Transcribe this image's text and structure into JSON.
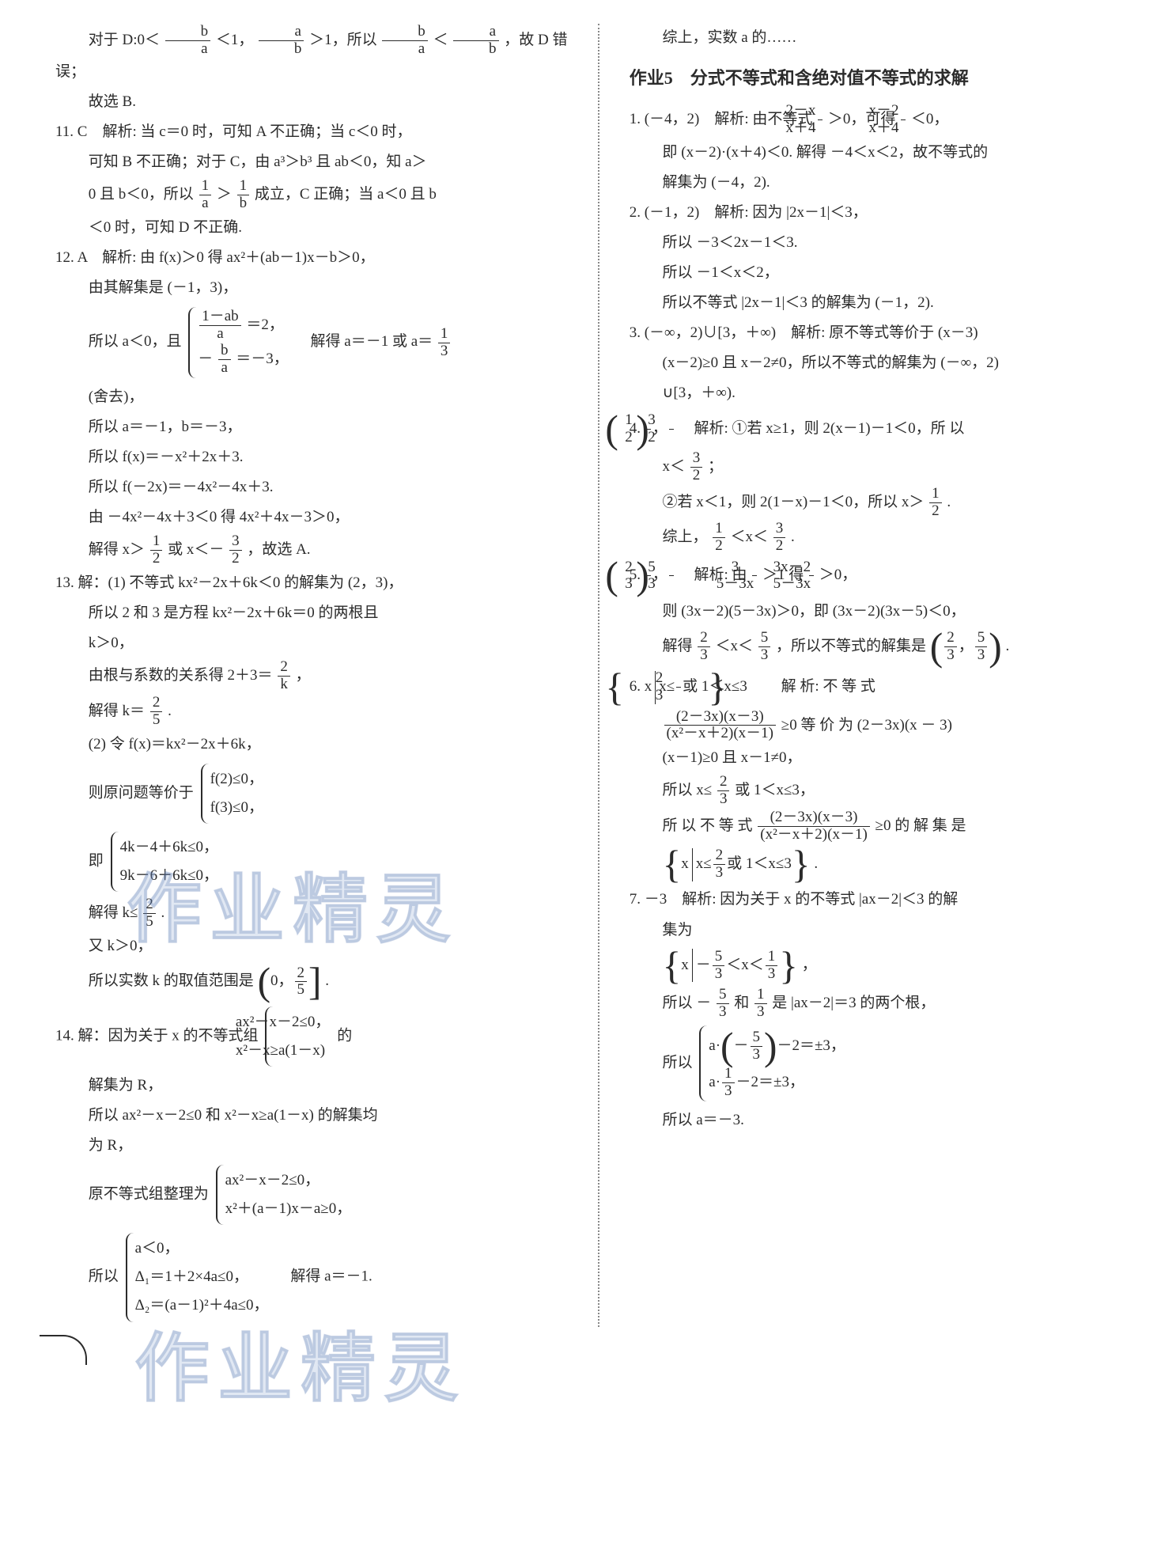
{
  "background_color": "#ffffff",
  "text_color": "#2b2b2b",
  "watermark_text": "作业精灵",
  "watermark_color": "rgba(120,150,200,0.22)",
  "left": {
    "l1": "对于 D:0＜",
    "l1b": "＜1，",
    "l1c": "＞1，所以",
    "l1d": "＜",
    "l1e": "，故 D 错误；",
    "l2": "故选 B.",
    "q11": "11. C　解析: 当 c＝0 时，可知 A 不正确；当 c＜0 时，",
    "q11b": "可知 B 不正确；对于 C，由 a³＞b³ 且 ab＜0，知 a＞",
    "q11c": "0 且 b＜0，所以",
    "q11c2": "＞",
    "q11c3": "成立，C 正确；当 a＜0 且 b",
    "q11d": "＜0 时，可知 D 不正确.",
    "q12": "12. A　解析: 由 f(x)＞0 得 ax²＋(ab－1)x－b＞0，",
    "q12b": "由其解集是 (－1，3)，",
    "q12c": "所以 a＜0，且",
    "q12c_eq1_num": "1－ab",
    "q12c_eq1_den": "a",
    "q12c_eq1_rhs": "＝2，",
    "q12c_eq2_lhs": "－",
    "q12c_eq2_num": "b",
    "q12c_eq2_den": "a",
    "q12c_eq2_rhs": "＝－3，",
    "q12c_after": "　解得 a＝－1 或 a＝",
    "q12d": "(舍去)，",
    "q12e": "所以 a＝－1，b＝－3，",
    "q12f": "所以 f(x)＝－x²＋2x＋3.",
    "q12g": "所以 f(－2x)＝－4x²－4x＋3.",
    "q12h": "由 －4x²－4x＋3＜0 得 4x²＋4x－3＞0，",
    "q12i": "解得 x＞",
    "q12i2": "或 x＜－",
    "q12i3": "，故选 A.",
    "q13": "13. 解：(1) 不等式 kx²－2x＋6k＜0 的解集为 (2，3)，",
    "q13b": "所以 2 和 3 是方程 kx²－2x＋6k＝0 的两根且",
    "q13b2": "k＞0，",
    "q13c": "由根与系数的关系得 2＋3＝",
    "q13c2": "，",
    "q13d": "解得 k＝",
    "q13d2": ".",
    "q13e": "(2) 令 f(x)＝kx²－2x＋6k，",
    "q13f": "则原问题等价于",
    "q13f_c1": "f(2)≤0，",
    "q13f_c2": "f(3)≤0，",
    "q13g": "即",
    "q13g_c1": "4k－4＋6k≤0，",
    "q13g_c2": "9k－6＋6k≤0，",
    "q13h": "解得 k≤",
    "q13h2": ".",
    "q13i": "又 k＞0，",
    "q13j": "所以实数 k 的取值范围是",
    "q13j2": ".",
    "q14": "14. 解：因为关于 x 的不等式组",
    "q14_c1": "ax²－x－2≤0，",
    "q14_c2": "x²－x≥a(1－x)",
    "q14_after": "的",
    "q14b": "解集为 R，",
    "q14c": "所以 ax²－x－2≤0 和 x²－x≥a(1－x) 的解集均",
    "q14c2": "为 R，",
    "q14d": "原不等式组整理为",
    "q14d_c1": "ax²－x－2≤0，",
    "q14d_c2": "x²＋(a－1)x－a≥0，",
    "q14e": "所以",
    "q14e_c1": "a＜0，",
    "q14e_c2": "Δ₁＝1＋2×4a≤0，",
    "q14e_c3": "Δ₂＝(a－1)²＋4a≤0，",
    "q14e_after": "　解得 a＝－1."
  },
  "right": {
    "top": "综上，实数 a 的……",
    "title": "作业5　分式不等式和含绝对值不等式的求解",
    "q1": "1. (－4，2)　解析: 由不等式",
    "q1b": "＞0，可得",
    "q1c": "＜0，",
    "q1d": "即 (x－2)·(x＋4)＜0. 解得 －4＜x＜2，故不等式的",
    "q1e": "解集为 (－4，2).",
    "q2": "2. (－1，2)　解析: 因为 |2x－1|＜3，",
    "q2b": "所以 －3＜2x－1＜3.",
    "q2c": "所以 －1＜x＜2，",
    "q2d": "所以不等式 |2x－1|＜3 的解集为 (－1，2).",
    "q3": "3. (－∞，2)∪[3，＋∞)　解析: 原不等式等价于 (x－3)",
    "q3b": "(x－2)≥0 且 x－2≠0，所以不等式的解集为 (－∞，2)",
    "q3c": "∪[3，＋∞).",
    "q4": "4. ",
    "q4a": "　解析: ①若 x≥1，则 2(x－1)－1＜0，所 以",
    "q4b": "x＜",
    "q4b2": "；",
    "q4c": "②若 x＜1，则 2(1－x)－1＜0，所以 x＞",
    "q4c2": ".",
    "q4d": "综上，",
    "q4d2": "＜x＜",
    "q4d3": ".",
    "q5": "5. ",
    "q5a": "　解析: 由",
    "q5a2": "＞1 得",
    "q5a3": "＞0，",
    "q5b": "则 (3x－2)(5－3x)＞0，即 (3x－2)(3x－5)＜0，",
    "q5c": "解得",
    "q5c2": "＜x＜",
    "q5c3": "，所以不等式的解集是",
    "q5c4": ".",
    "q6": "6. ",
    "q6set_l": "x",
    "q6set_m": "x≤",
    "q6set_m2": "或 1＜x≤3",
    "q6a": "　　解 析: 不 等 式",
    "q6b_num": "(2－3x)(x－3)",
    "q6b_den": "(x²－x＋2)(x－1)",
    "q6b2": "≥0 等 价 为 (2－3x)(x － 3)",
    "q6c": "(x－1)≥0 且 x－1≠0，",
    "q6d": "所以 x≤",
    "q6d2": "或 1＜x≤3，",
    "q6e": "所 以 不 等 式",
    "q6e2": "≥0 的 解 集 是",
    "q6f_l": "x",
    "q6f_m": "x≤",
    "q6f_m2": "或 1＜x≤3",
    "q6f3": ".",
    "q7": "7. －3　解析: 因为关于 x 的不等式 |ax－2|＜3 的解",
    "q7b": "集为",
    "q7set_l": "x",
    "q7set_m": "－",
    "q7set_m2": "＜x＜",
    "q7set_m3": "",
    "q7b2": "，",
    "q7c": "所以 －",
    "q7c2": "和",
    "q7c3": "是 |ax－2|＝3 的两个根，",
    "q7d": "所以",
    "q7d_c1a": "a·",
    "q7d_c1b": "－2＝±3，",
    "q7d_c2a": "a·",
    "q7d_c2b": "－2＝±3，",
    "q7e": "所以 a＝－3."
  },
  "fracs": {
    "b_a": {
      "n": "b",
      "d": "a"
    },
    "a_b": {
      "n": "a",
      "d": "b"
    },
    "one_a": {
      "n": "1",
      "d": "a"
    },
    "one_b": {
      "n": "1",
      "d": "b"
    },
    "one_half": {
      "n": "1",
      "d": "2"
    },
    "three_half": {
      "n": "3",
      "d": "2"
    },
    "one_third": {
      "n": "1",
      "d": "3"
    },
    "two_k": {
      "n": "2",
      "d": "k"
    },
    "two_fifth": {
      "n": "2",
      "d": "5"
    },
    "twomx_xp4": {
      "n": "2－x",
      "d": "x＋4"
    },
    "xm2_xp4": {
      "n": "x－2",
      "d": "x＋4"
    },
    "two_third": {
      "n": "2",
      "d": "3"
    },
    "five_third": {
      "n": "5",
      "d": "3"
    },
    "three_5m3x": {
      "n": "3",
      "d": "5－3x"
    },
    "threexm2_5m3x": {
      "n": "3x－2",
      "d": "5－3x"
    }
  }
}
